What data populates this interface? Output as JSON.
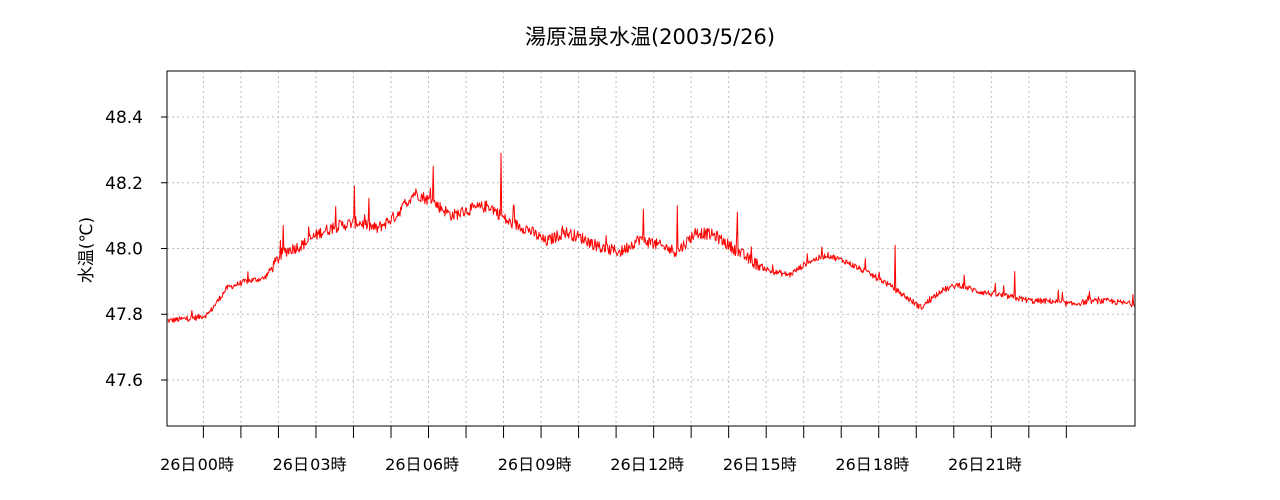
{
  "chart_data": {
    "type": "line",
    "title": "湯原温泉水温(2003/5/26)",
    "ylabel": "水温(℃)",
    "xlabel": "",
    "ylim": [
      47.46,
      48.54
    ],
    "yticks": [
      47.6,
      47.8,
      48.0,
      48.2,
      48.4
    ],
    "ytick_labels": [
      "47.6",
      "47.8",
      "48.0",
      "48.2",
      "48.4"
    ],
    "xlim": [
      -1.3,
      24.5
    ],
    "xticks": [
      -0.33,
      0.67,
      1.67,
      2.67,
      3.67,
      4.67,
      5.67,
      6.67,
      7.67,
      8.67,
      9.67,
      10.67,
      11.67,
      12.67,
      13.67,
      14.67,
      15.67,
      16.67,
      17.67,
      18.67,
      19.67,
      20.67,
      21.67,
      22.67
    ],
    "xtick_labels": [
      {
        "x": -1,
        "text": "26日"
      },
      {
        "x": 0,
        "text": "00時"
      },
      {
        "x": 2,
        "text": "26日"
      },
      {
        "x": 3,
        "text": "03時"
      },
      {
        "x": 5,
        "text": "26日"
      },
      {
        "x": 6,
        "text": "06時"
      },
      {
        "x": 8,
        "text": "26日"
      },
      {
        "x": 9,
        "text": "09時"
      },
      {
        "x": 11,
        "text": "26日"
      },
      {
        "x": 12,
        "text": "12時"
      },
      {
        "x": 14,
        "text": "26日"
      },
      {
        "x": 15,
        "text": "15時"
      },
      {
        "x": 17,
        "text": "26日"
      },
      {
        "x": 18,
        "text": "18時"
      },
      {
        "x": 20,
        "text": "26日"
      },
      {
        "x": 21,
        "text": "21時"
      }
    ],
    "grid": true,
    "series": [
      {
        "color": "#ff0000",
        "x": [
          -1.3,
          -0.5,
          -0.2,
          0.3,
          0.8,
          1.3,
          1.8,
          2.3,
          2.8,
          3.3,
          3.8,
          4.3,
          4.8,
          5.3,
          5.8,
          6.3,
          6.8,
          7.3,
          7.8,
          8.3,
          8.8,
          9.3,
          9.8,
          10.3,
          10.8,
          11.3,
          11.8,
          12.3,
          12.8,
          13.3,
          13.8,
          14.3,
          14.8,
          15.3,
          15.8,
          16.3,
          16.8,
          17.3,
          17.8,
          18.3,
          18.8,
          19.3,
          19.8,
          20.3,
          20.8,
          21.3,
          21.8,
          22.3,
          22.8,
          23.3,
          23.8,
          24.5
        ],
        "values": [
          47.78,
          47.79,
          47.8,
          47.88,
          47.9,
          47.91,
          47.99,
          48.01,
          48.05,
          48.07,
          48.08,
          48.06,
          48.1,
          48.17,
          48.14,
          48.1,
          48.12,
          48.13,
          48.08,
          48.06,
          48.02,
          48.05,
          48.03,
          48.0,
          47.99,
          48.03,
          48.01,
          47.99,
          48.05,
          48.04,
          48.0,
          47.96,
          47.93,
          47.92,
          47.96,
          47.98,
          47.96,
          47.93,
          47.9,
          47.86,
          47.82,
          47.87,
          47.89,
          47.87,
          47.86,
          47.85,
          47.84,
          47.84,
          47.83,
          47.84,
          47.84,
          47.83
        ],
        "spikes": [
          {
            "x": 1.8,
            "value": 48.07
          },
          {
            "x": 3.7,
            "value": 48.19
          },
          {
            "x": 5.8,
            "value": 48.25
          },
          {
            "x": 7.6,
            "value": 48.29
          },
          {
            "x": 11.4,
            "value": 48.12
          },
          {
            "x": 12.3,
            "value": 48.13
          },
          {
            "x": 13.9,
            "value": 48.11
          },
          {
            "x": 18.1,
            "value": 48.01
          },
          {
            "x": 21.3,
            "value": 47.93
          }
        ]
      }
    ]
  }
}
